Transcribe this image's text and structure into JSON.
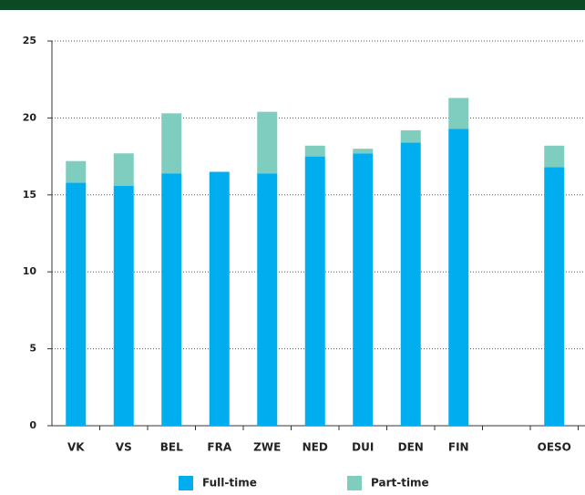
{
  "chart_data": {
    "type": "stacked_bar",
    "categories": [
      "VK",
      "VS",
      "BEL",
      "FRA",
      "ZWE",
      "NED",
      "DUI",
      "DEN",
      "FIN",
      null,
      "OESO"
    ],
    "series": [
      {
        "name": "Full-time",
        "color": "#00aeef",
        "values": [
          15.8,
          15.6,
          16.4,
          16.5,
          16.4,
          17.5,
          17.7,
          18.4,
          19.3,
          null,
          16.8
        ]
      },
      {
        "name": "Part-time",
        "color": "#7fcdbe",
        "values": [
          1.4,
          2.1,
          3.9,
          0,
          4.0,
          0.7,
          0.3,
          0.8,
          2.0,
          null,
          1.4
        ]
      }
    ],
    "ylim": [
      0,
      25
    ],
    "yticks": [
      0,
      5,
      10,
      15,
      20,
      25
    ],
    "grid": true,
    "legend": "bottom"
  }
}
